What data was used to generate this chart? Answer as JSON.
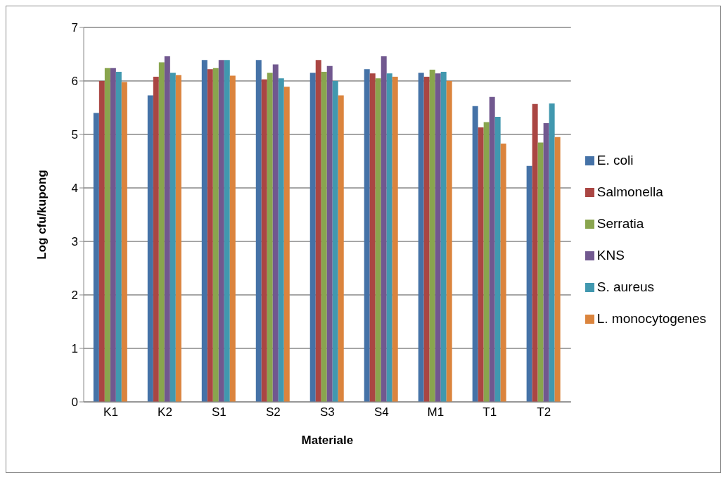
{
  "chart_data": {
    "type": "bar",
    "xlabel": "Materiale",
    "ylabel": "Log cfu/kupong",
    "categories": [
      "K1",
      "K2",
      "S1",
      "S2",
      "S3",
      "S4",
      "M1",
      "T1",
      "T2"
    ],
    "series": [
      {
        "name": "E. coli",
        "color": "#4572a7",
        "values": [
          5.4,
          5.73,
          6.39,
          6.39,
          6.15,
          6.22,
          6.15,
          5.53,
          4.41
        ]
      },
      {
        "name": "Salmonella",
        "color": "#aa4643",
        "values": [
          6.0,
          6.08,
          6.22,
          6.03,
          6.39,
          6.14,
          6.08,
          5.13,
          5.57
        ]
      },
      {
        "name": "Serratia",
        "color": "#89a54e",
        "values": [
          6.24,
          6.35,
          6.24,
          6.15,
          6.17,
          6.05,
          6.21,
          5.23,
          4.85
        ]
      },
      {
        "name": "KNS",
        "color": "#71588f",
        "values": [
          6.24,
          6.46,
          6.39,
          6.31,
          6.28,
          6.46,
          6.14,
          5.7,
          5.21
        ]
      },
      {
        "name": "S. aureus",
        "color": "#4198af",
        "values": [
          6.17,
          6.15,
          6.39,
          6.05,
          6.0,
          6.14,
          6.17,
          5.33,
          5.58
        ]
      },
      {
        "name": "L. monocytogenes",
        "color": "#db843d",
        "values": [
          5.98,
          6.11,
          6.1,
          5.89,
          5.73,
          6.08,
          6.0,
          4.83,
          4.95
        ]
      }
    ],
    "ylim": [
      0,
      7
    ],
    "yticks": [
      0,
      1,
      2,
      3,
      4,
      5,
      6,
      7
    ],
    "grid": "y",
    "legend": "right"
  }
}
